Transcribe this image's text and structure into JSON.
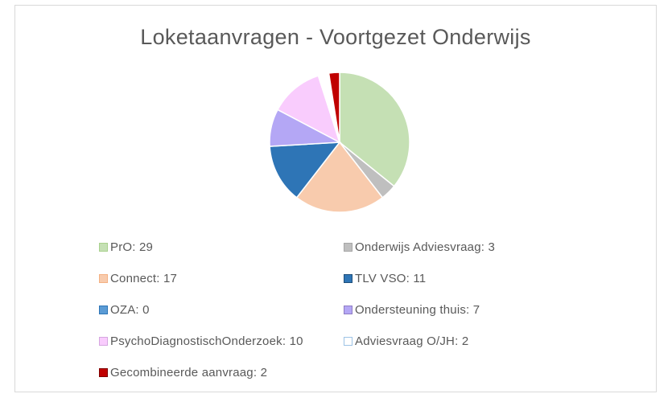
{
  "chart_data": {
    "type": "pie",
    "title": "Loketaanvragen - Voortgezet Onderwijs",
    "legend_position": "bottom",
    "slices": [
      {
        "label": "PrO",
        "value": 29,
        "legend_text": "PrO: 29",
        "color": "#c5e0b4",
        "border": "#a9d18e"
      },
      {
        "label": "Onderwijs Adviesvraag",
        "value": 3,
        "legend_text": "Onderwijs Adviesvraag: 3",
        "color": "#bfbfbf",
        "border": "#a6a6a6"
      },
      {
        "label": "Connect",
        "value": 17,
        "legend_text": "Connect: 17",
        "color": "#f8cbad",
        "border": "#f4b183"
      },
      {
        "label": "TLV VSO",
        "value": 11,
        "legend_text": "TLV VSO: 11",
        "color": "#2e75b6",
        "border": "#1f4e79"
      },
      {
        "label": "OZA",
        "value": 0,
        "legend_text": "OZA: 0",
        "color": "#5b9bd5",
        "border": "#2e75b6"
      },
      {
        "label": "Ondersteuning thuis",
        "value": 7,
        "legend_text": "Ondersteuning thuis: 7",
        "color": "#b4a7f5",
        "border": "#8e7cc3"
      },
      {
        "label": "PsychoDiagnostischOnderzoek",
        "value": 10,
        "legend_text": "PsychoDiagnostischOnderzoek: 10",
        "color": "#f9ccfd",
        "border": "#d5a6e0"
      },
      {
        "label": "Adviesvraag O/JH",
        "value": 2,
        "legend_text": "Adviesvraag O/JH: 2",
        "color": "#ffffff",
        "border": "#9dc3e6"
      },
      {
        "label": "Gecombineerde aanvraag",
        "value": 2,
        "legend_text": "Gecombineerde aanvraag: 2",
        "color": "#c00000",
        "border": "#7f0000"
      }
    ]
  }
}
